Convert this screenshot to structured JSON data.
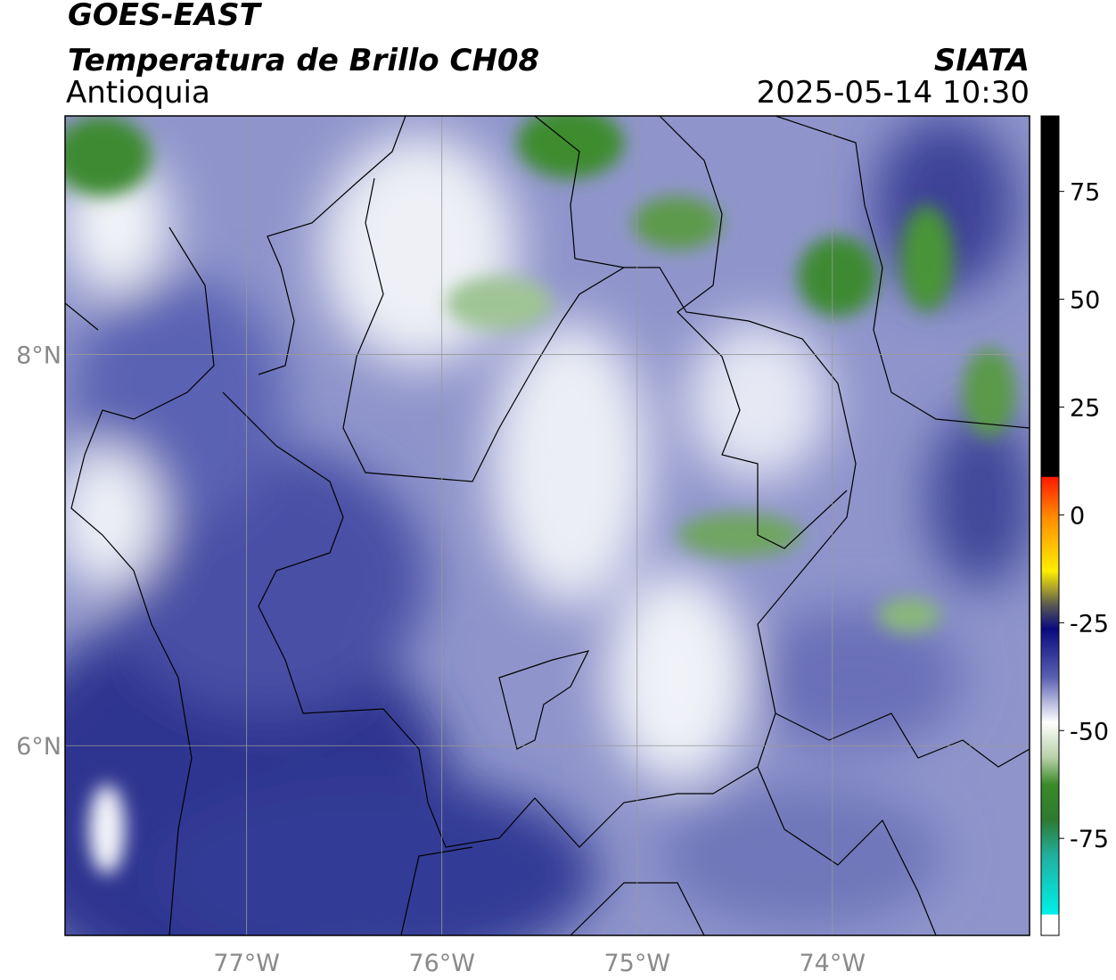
{
  "header": {
    "satellite": "GOES-EAST",
    "product": "Temperatura de Brillo CH08",
    "region": "Antioquia",
    "source": "SIATA",
    "datetime": "2025-05-14 10:30"
  },
  "map": {
    "lonlim": [
      -77.93,
      -72.99
    ],
    "latlim": [
      5.03,
      9.22
    ],
    "lon_ticks": [
      {
        "value": -77,
        "label": "77°W"
      },
      {
        "value": -76,
        "label": "76°W"
      },
      {
        "value": -75,
        "label": "75°W"
      },
      {
        "value": -74,
        "label": "74°W"
      }
    ],
    "lat_ticks": [
      {
        "value": 8,
        "label": "8°N"
      },
      {
        "value": 6,
        "label": "6°N"
      }
    ]
  },
  "colorbar": {
    "lim": [
      -97.5,
      92.5
    ],
    "ticks": [
      -75,
      -50,
      -25,
      0,
      25,
      50,
      75
    ]
  }
}
